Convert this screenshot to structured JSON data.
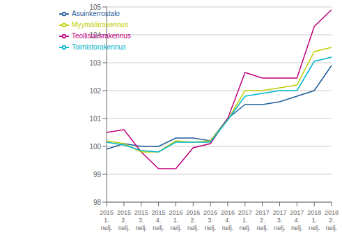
{
  "chart_data": {
    "type": "line",
    "categories": [
      "2015\n1.\nnelj.",
      "2015\n2.\nnelj.",
      "2015\n3.\nnelj.",
      "2015\n4.\nnelj.",
      "2016\n1.\nnelj.",
      "2016\n2.\nnelj.",
      "2016\n3.\nnelj.",
      "2016\n4.\nnelj.",
      "2017\n1.\nnelj.",
      "2017\n2.\nnelj.",
      "2017\n3.\nnelj.",
      "2017\n4.\nnelj.",
      "2018\n1.\nnelj.",
      "2018\n2.\nnelj."
    ],
    "series": [
      {
        "name": "Asuinkerrostalo",
        "color": "#1F5C99",
        "values": [
          99.9,
          100.1,
          100.0,
          100.0,
          100.3,
          100.3,
          100.2,
          101.0,
          101.5,
          101.5,
          101.6,
          101.8,
          102.0,
          102.9
        ]
      },
      {
        "name": "Teollisuusrakennus",
        "color": "#C0007A",
        "values": [
          100.5,
          100.6,
          99.8,
          99.2,
          99.2,
          99.95,
          100.1,
          101.0,
          102.65,
          102.45,
          102.45,
          102.45,
          104.3,
          104.9
        ]
      },
      {
        "name": "Myymälärakennus",
        "color": "#BFCF00",
        "values": [
          100.2,
          100.1,
          99.8,
          99.8,
          100.2,
          100.15,
          100.2,
          100.95,
          102.0,
          102.0,
          102.1,
          102.2,
          103.4,
          103.55
        ]
      },
      {
        "name": "Toimistorakennus",
        "color": "#00B4CC",
        "values": [
          100.15,
          100.05,
          99.85,
          99.8,
          100.15,
          100.15,
          100.15,
          100.95,
          101.8,
          101.9,
          102.0,
          102.0,
          103.05,
          103.2
        ]
      }
    ],
    "ylim": [
      98,
      105
    ],
    "yticks": [
      98,
      99,
      100,
      101,
      102,
      103,
      104,
      105
    ],
    "grid": true,
    "legend": "upper left"
  }
}
